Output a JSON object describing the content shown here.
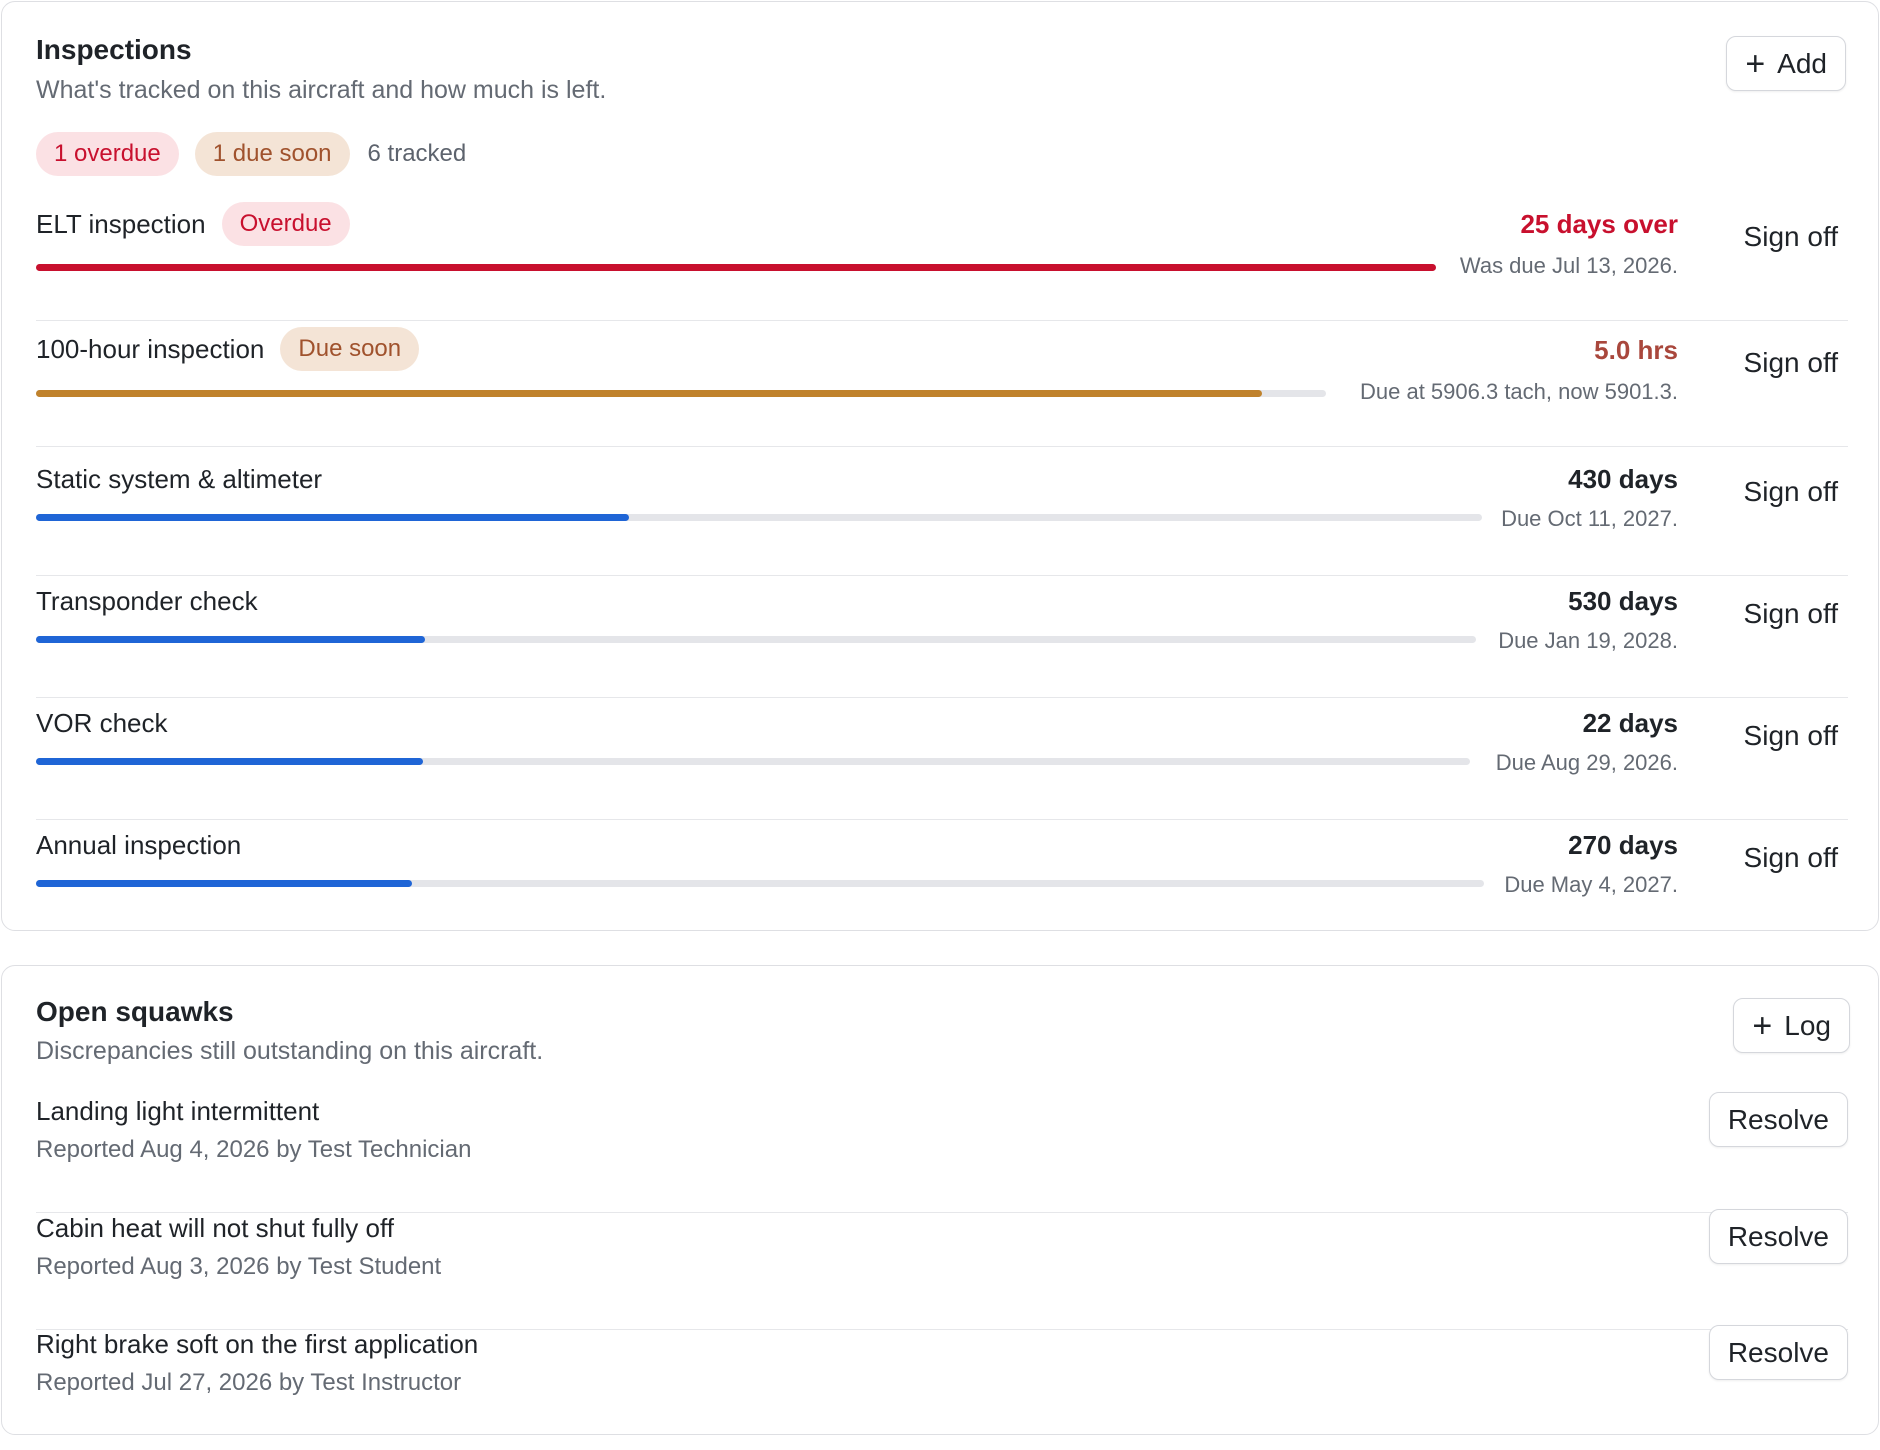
{
  "inspections": {
    "title": "Inspections",
    "subtitle": "What's tracked on this aircraft and how much is left.",
    "add_label": "Add",
    "summary": {
      "overdue": "1 overdue",
      "due_soon": "1 due soon",
      "tracked": "6 tracked"
    },
    "signoff_label": "Sign off",
    "items": [
      {
        "name": "ELT inspection",
        "status": "Overdue",
        "remaining": "25 days over",
        "due": "Was due Jul 13, 2026.",
        "progress": 1.0,
        "color": "#c8102e"
      },
      {
        "name": "100-hour inspection",
        "status": "Due soon",
        "remaining": "5.0 hrs",
        "due": "Due at 5906.3 tach, now 5901.3.",
        "progress": 0.95,
        "color": "#c0822c"
      },
      {
        "name": "Static system & altimeter",
        "status": "",
        "remaining": "430 days",
        "due": "Due Oct 11, 2027.",
        "progress": 0.41,
        "color": "#1f65d6"
      },
      {
        "name": "Transponder check",
        "status": "",
        "remaining": "530 days",
        "due": "Due Jan 19, 2028.",
        "progress": 0.27,
        "color": "#1f65d6"
      },
      {
        "name": "VOR check",
        "status": "",
        "remaining": "22 days",
        "due": "Due Aug 29, 2026.",
        "progress": 0.27,
        "color": "#1f65d6"
      },
      {
        "name": "Annual inspection",
        "status": "",
        "remaining": "270 days",
        "due": "Due May 4, 2027.",
        "progress": 0.26,
        "color": "#1f65d6"
      }
    ]
  },
  "squawks": {
    "title": "Open squawks",
    "subtitle": "Discrepancies still outstanding on this aircraft.",
    "log_label": "Log",
    "resolve_label": "Resolve",
    "items": [
      {
        "title": "Landing light intermittent",
        "meta": "Reported Aug 4, 2026 by Test Technician"
      },
      {
        "title": "Cabin heat will not shut fully off",
        "meta": "Reported Aug 3, 2026 by Test Student"
      },
      {
        "title": "Right brake soft on the first application",
        "meta": "Reported Jul 27, 2026 by Test Instructor"
      }
    ]
  },
  "icons": {
    "add": "plus-icon",
    "log": "plus-icon"
  }
}
